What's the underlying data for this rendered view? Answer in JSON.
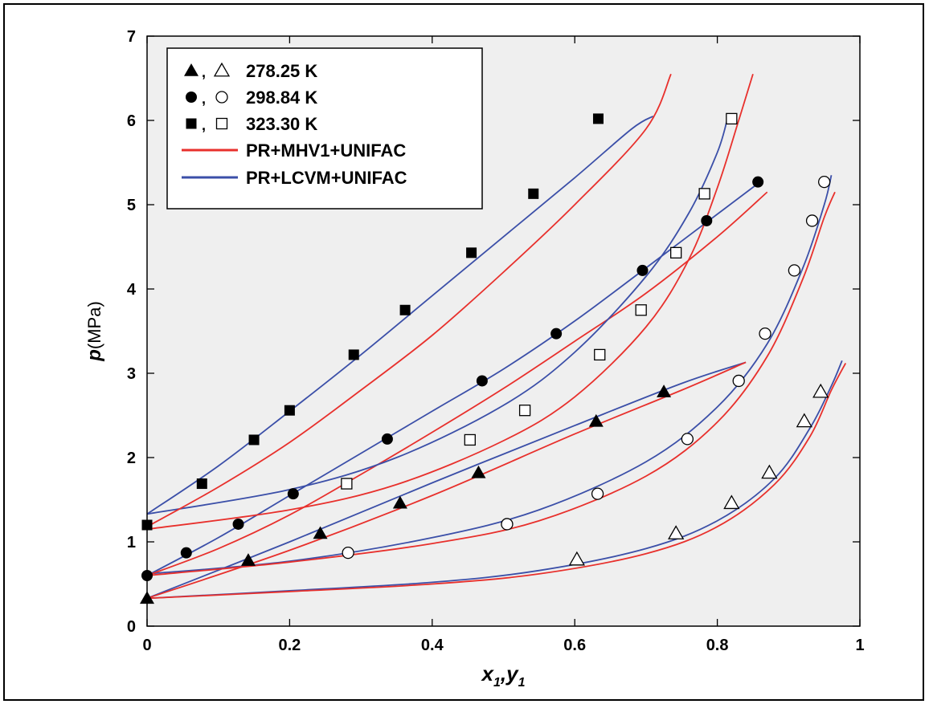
{
  "chart_data": {
    "type": "scatter",
    "title": "",
    "xlabel": "x1,y1",
    "xlabel_parts": {
      "x": "x",
      "x_sub": "1",
      "sep": ",",
      "y": "y",
      "y_sub": "1"
    },
    "ylabel": "p(MPa)",
    "ylabel_parts": {
      "symbol": "p",
      "unit": "(MPa)"
    },
    "xlim": [
      0,
      1
    ],
    "ylim": [
      0,
      7
    ],
    "xticks": [
      "0",
      "0.2",
      "0.4",
      "0.6",
      "0.8",
      "1"
    ],
    "yticks": [
      "0",
      "1",
      "2",
      "3",
      "4",
      "5",
      "6",
      "7"
    ],
    "xtick_values": [
      0,
      0.2,
      0.4,
      0.6,
      0.8,
      1
    ],
    "ytick_values": [
      0,
      1,
      2,
      3,
      4,
      5,
      6,
      7
    ],
    "plot_background": "#efefef",
    "legend_position": "top-left",
    "legend": [
      {
        "kind": "markers",
        "marker": "triangle",
        "label": "278.25 K"
      },
      {
        "kind": "markers",
        "marker": "circle",
        "label": "298.84 K"
      },
      {
        "kind": "markers",
        "marker": "square",
        "label": "323.30 K"
      },
      {
        "kind": "line",
        "color": "#e8302c",
        "label": "PR+MHV1+UNIFAC"
      },
      {
        "kind": "line",
        "color": "#3b4fa8",
        "label": "PR+LCVM+UNIFAC"
      }
    ],
    "series": [
      {
        "name": "278.25 K",
        "marker": "triangle",
        "filled": true,
        "phase": "liquid",
        "points": [
          [
            0.0,
            0.33
          ],
          [
            0.142,
            0.78
          ],
          [
            0.243,
            1.1
          ],
          [
            0.355,
            1.46
          ],
          [
            0.465,
            1.82
          ],
          [
            0.63,
            2.43
          ],
          [
            0.725,
            2.78
          ]
        ]
      },
      {
        "name": "278.25 K",
        "marker": "triangle",
        "filled": false,
        "phase": "vapor",
        "points": [
          [
            0.603,
            0.79
          ],
          [
            0.742,
            1.1
          ],
          [
            0.82,
            1.46
          ],
          [
            0.873,
            1.82
          ],
          [
            0.922,
            2.43
          ],
          [
            0.945,
            2.78
          ]
        ]
      },
      {
        "name": "298.84 K",
        "marker": "circle",
        "filled": true,
        "phase": "liquid",
        "points": [
          [
            0.0,
            0.6
          ],
          [
            0.055,
            0.87
          ],
          [
            0.128,
            1.21
          ],
          [
            0.205,
            1.57
          ],
          [
            0.337,
            2.22
          ],
          [
            0.47,
            2.91
          ],
          [
            0.574,
            3.47
          ],
          [
            0.695,
            4.22
          ],
          [
            0.785,
            4.81
          ],
          [
            0.857,
            5.27
          ]
        ]
      },
      {
        "name": "298.84 K",
        "marker": "circle",
        "filled": false,
        "phase": "vapor",
        "points": [
          [
            0.282,
            0.87
          ],
          [
            0.505,
            1.21
          ],
          [
            0.632,
            1.57
          ],
          [
            0.758,
            2.22
          ],
          [
            0.83,
            2.91
          ],
          [
            0.867,
            3.47
          ],
          [
            0.908,
            4.22
          ],
          [
            0.933,
            4.81
          ],
          [
            0.95,
            5.27
          ]
        ]
      },
      {
        "name": "323.30 K",
        "marker": "square",
        "filled": true,
        "phase": "liquid",
        "points": [
          [
            0.0,
            1.2
          ],
          [
            0.077,
            1.69
          ],
          [
            0.15,
            2.21
          ],
          [
            0.2,
            2.56
          ],
          [
            0.29,
            3.22
          ],
          [
            0.362,
            3.75
          ],
          [
            0.455,
            4.43
          ],
          [
            0.542,
            5.13
          ],
          [
            0.633,
            6.02
          ]
        ]
      },
      {
        "name": "323.30 K",
        "marker": "square",
        "filled": false,
        "phase": "vapor",
        "points": [
          [
            0.28,
            1.69
          ],
          [
            0.453,
            2.21
          ],
          [
            0.53,
            2.56
          ],
          [
            0.635,
            3.22
          ],
          [
            0.693,
            3.75
          ],
          [
            0.742,
            4.43
          ],
          [
            0.782,
            5.13
          ],
          [
            0.82,
            6.02
          ]
        ]
      }
    ],
    "curves": [
      {
        "model": "PR+LCVM+UNIFAC",
        "color": "#3b4fa8",
        "points": [
          [
            0,
            0.33
          ],
          [
            0.2,
            1.0
          ],
          [
            0.4,
            1.7
          ],
          [
            0.6,
            2.38
          ],
          [
            0.75,
            2.88
          ],
          [
            0.84,
            3.13
          ]
        ]
      },
      {
        "model": "PR+LCVM+UNIFAC",
        "color": "#3b4fa8",
        "points": [
          [
            0,
            0.33
          ],
          [
            0.2,
            0.42
          ],
          [
            0.4,
            0.52
          ],
          [
            0.55,
            0.66
          ],
          [
            0.7,
            0.92
          ],
          [
            0.8,
            1.25
          ],
          [
            0.88,
            1.75
          ],
          [
            0.93,
            2.35
          ],
          [
            0.96,
            2.85
          ],
          [
            0.975,
            3.15
          ]
        ]
      },
      {
        "model": "PR+MHV1+UNIFAC",
        "color": "#e8302c",
        "points": [
          [
            0,
            0.33
          ],
          [
            0.2,
            0.9
          ],
          [
            0.4,
            1.55
          ],
          [
            0.6,
            2.28
          ],
          [
            0.75,
            2.8
          ],
          [
            0.84,
            3.13
          ]
        ]
      },
      {
        "model": "PR+MHV1+UNIFAC",
        "color": "#e8302c",
        "points": [
          [
            0,
            0.33
          ],
          [
            0.2,
            0.41
          ],
          [
            0.4,
            0.5
          ],
          [
            0.55,
            0.62
          ],
          [
            0.7,
            0.86
          ],
          [
            0.8,
            1.18
          ],
          [
            0.88,
            1.68
          ],
          [
            0.93,
            2.25
          ],
          [
            0.96,
            2.8
          ],
          [
            0.98,
            3.12
          ]
        ]
      },
      {
        "model": "PR+LCVM+UNIFAC",
        "color": "#3b4fa8",
        "points": [
          [
            0,
            0.6
          ],
          [
            0.1,
            1.05
          ],
          [
            0.2,
            1.55
          ],
          [
            0.3,
            2.05
          ],
          [
            0.4,
            2.55
          ],
          [
            0.5,
            3.05
          ],
          [
            0.6,
            3.62
          ],
          [
            0.7,
            4.25
          ],
          [
            0.78,
            4.76
          ],
          [
            0.86,
            5.27
          ]
        ]
      },
      {
        "model": "PR+LCVM+UNIFAC",
        "color": "#3b4fa8",
        "points": [
          [
            0,
            0.62
          ],
          [
            0.2,
            0.77
          ],
          [
            0.4,
            1.05
          ],
          [
            0.55,
            1.38
          ],
          [
            0.7,
            1.95
          ],
          [
            0.8,
            2.6
          ],
          [
            0.87,
            3.35
          ],
          [
            0.92,
            4.25
          ],
          [
            0.95,
            5.0
          ],
          [
            0.96,
            5.35
          ]
        ]
      },
      {
        "model": "PR+MHV1+UNIFAC",
        "color": "#e8302c",
        "points": [
          [
            0,
            0.6
          ],
          [
            0.1,
            0.92
          ],
          [
            0.2,
            1.32
          ],
          [
            0.3,
            1.8
          ],
          [
            0.4,
            2.3
          ],
          [
            0.5,
            2.82
          ],
          [
            0.6,
            3.38
          ],
          [
            0.7,
            3.95
          ],
          [
            0.8,
            4.62
          ],
          [
            0.87,
            5.15
          ]
        ]
      },
      {
        "model": "PR+MHV1+UNIFAC",
        "color": "#e8302c",
        "points": [
          [
            0,
            0.6
          ],
          [
            0.2,
            0.76
          ],
          [
            0.4,
            0.98
          ],
          [
            0.55,
            1.25
          ],
          [
            0.7,
            1.78
          ],
          [
            0.8,
            2.42
          ],
          [
            0.87,
            3.2
          ],
          [
            0.92,
            4.12
          ],
          [
            0.95,
            4.85
          ],
          [
            0.965,
            5.15
          ]
        ]
      },
      {
        "model": "PR+LCVM+UNIFAC",
        "color": "#3b4fa8",
        "points": [
          [
            0,
            1.33
          ],
          [
            0.1,
            1.9
          ],
          [
            0.2,
            2.55
          ],
          [
            0.3,
            3.22
          ],
          [
            0.4,
            3.92
          ],
          [
            0.5,
            4.62
          ],
          [
            0.6,
            5.32
          ],
          [
            0.68,
            5.9
          ],
          [
            0.71,
            6.05
          ]
        ]
      },
      {
        "model": "PR+LCVM+UNIFAC",
        "color": "#3b4fa8",
        "points": [
          [
            0,
            1.33
          ],
          [
            0.2,
            1.62
          ],
          [
            0.35,
            2.0
          ],
          [
            0.5,
            2.62
          ],
          [
            0.6,
            3.25
          ],
          [
            0.7,
            4.15
          ],
          [
            0.76,
            4.9
          ],
          [
            0.8,
            5.62
          ],
          [
            0.815,
            6.05
          ]
        ]
      },
      {
        "model": "PR+MHV1+UNIFAC",
        "color": "#e8302c",
        "points": [
          [
            0,
            1.18
          ],
          [
            0.1,
            1.65
          ],
          [
            0.2,
            2.18
          ],
          [
            0.3,
            2.8
          ],
          [
            0.4,
            3.45
          ],
          [
            0.5,
            4.2
          ],
          [
            0.6,
            5.0
          ],
          [
            0.7,
            5.9
          ],
          [
            0.735,
            6.55
          ]
        ]
      },
      {
        "model": "PR+MHV1+UNIFAC",
        "color": "#e8302c",
        "points": [
          [
            0,
            1.15
          ],
          [
            0.2,
            1.38
          ],
          [
            0.35,
            1.68
          ],
          [
            0.5,
            2.2
          ],
          [
            0.6,
            2.72
          ],
          [
            0.7,
            3.55
          ],
          [
            0.76,
            4.35
          ],
          [
            0.8,
            5.2
          ],
          [
            0.83,
            6.0
          ],
          [
            0.85,
            6.55
          ]
        ]
      }
    ]
  }
}
